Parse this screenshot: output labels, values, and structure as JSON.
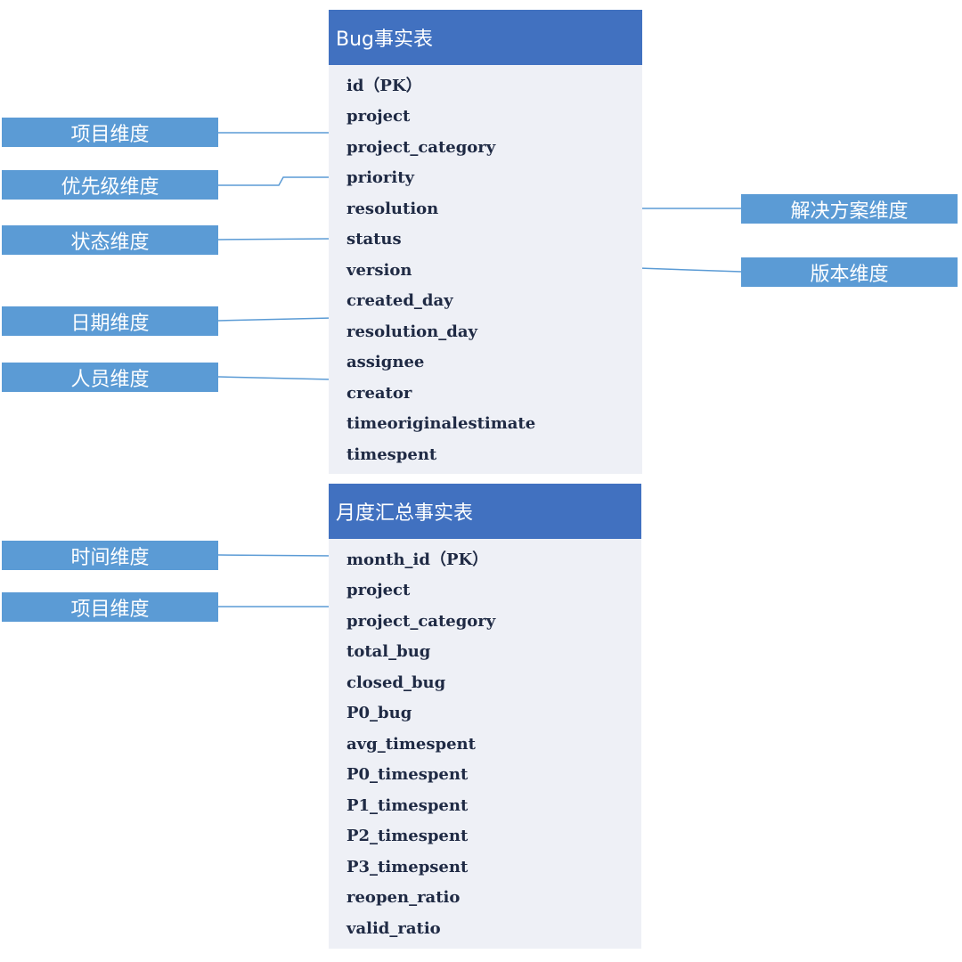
{
  "bug_table": {
    "title": "Bug事实表",
    "fields": [
      "id（PK）",
      "project",
      "project_category",
      "priority",
      "resolution",
      "status",
      "version",
      "created_day",
      "resolution_day",
      "assignee",
      "creator",
      "timeoriginalestimate",
      "timespent"
    ]
  },
  "monthly_table": {
    "title": "月度汇总事实表",
    "fields": [
      "month_id（PK）",
      "project",
      "project_category",
      "total_bug",
      "closed_bug",
      "P0_bug",
      "avg_timespent",
      "P0_timespent",
      "P1_timespent",
      "P2_timespent",
      "P3_timepsent",
      "reopen_ratio",
      "valid_ratio"
    ]
  },
  "dimensions": {
    "project_dim_1": "项目维度",
    "priority_dim": "优先级维度",
    "status_dim": "状态维度",
    "date_dim": "日期维度",
    "person_dim": "人员维度",
    "resolution_dim": "解决方案维度",
    "version_dim": "版本维度",
    "time_dim": "时间维度",
    "project_dim_2": "项目维度"
  },
  "colors": {
    "header_bg": "#4171c0",
    "dimension_bg": "#5b9bd5",
    "table_body_bg": "#eef0f6",
    "connector": "#5b9bd5"
  }
}
